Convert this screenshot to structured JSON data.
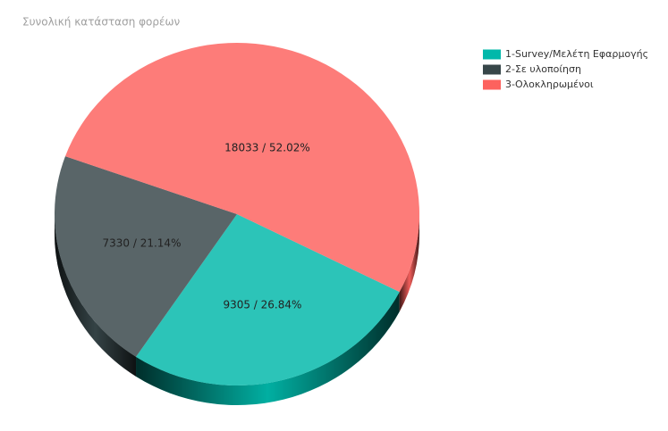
{
  "chart_data": {
    "type": "pie",
    "title": "Συνολική κατάσταση φορέων",
    "categories": [
      "1-Survey/Μελέτη Εφαρμογής",
      "2-Σε υλοποίηση",
      "3-Ολοκληρωμένοι"
    ],
    "values": [
      9305,
      7330,
      18033
    ],
    "value_labels": [
      "9305 /  26.84%",
      "7330 /  21.14%",
      "18033 /  52.02%"
    ],
    "colors": [
      "#01b8aa",
      "#374649",
      "#fd625e"
    ],
    "legend": "top-right"
  }
}
